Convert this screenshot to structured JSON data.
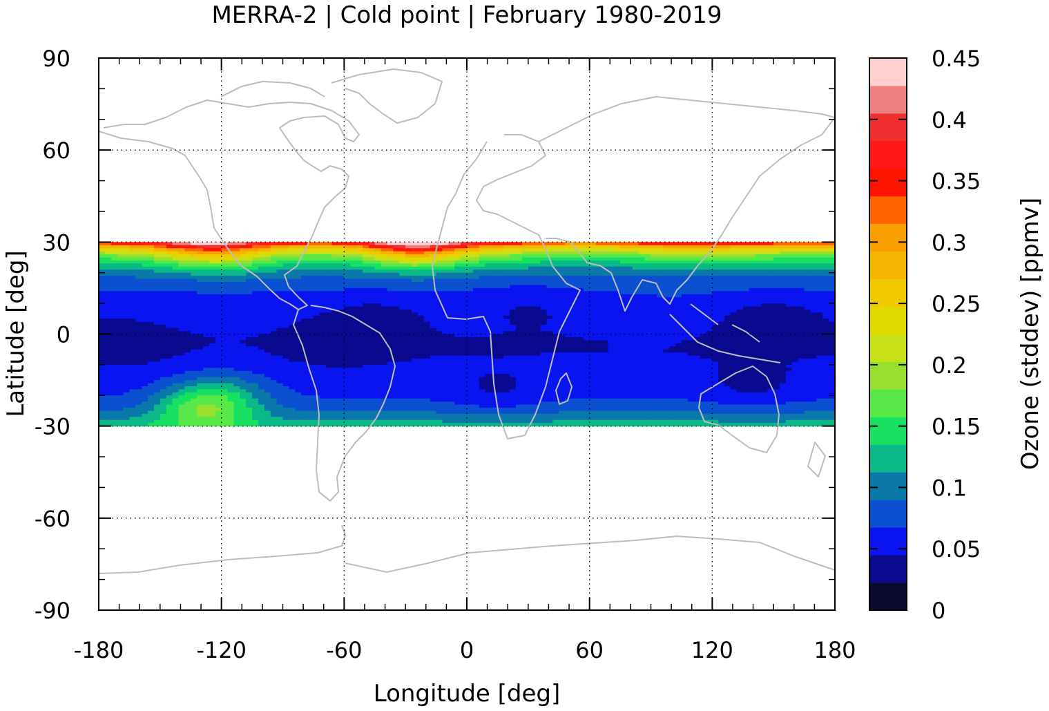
{
  "chart_data": {
    "type": "heatmap",
    "title": "MERRA-2 | Cold point | February 1980-2019",
    "xlabel": "Longitude [deg]",
    "ylabel": "Latitude [deg]",
    "xlim": [
      -180,
      180
    ],
    "ylim": [
      -90,
      90
    ],
    "x_ticks": [
      -180,
      -120,
      -60,
      0,
      60,
      120,
      180
    ],
    "x_tick_labels": [
      "-180",
      "-120",
      "-60",
      "0",
      "60",
      "120",
      "180"
    ],
    "y_ticks": [
      90,
      60,
      30,
      0,
      -30,
      -60,
      -90
    ],
    "y_tick_labels": [
      "90",
      "60",
      "30",
      "0",
      "-30",
      "-60",
      "-90"
    ],
    "grid": true,
    "data_lat_range": [
      -30,
      30
    ],
    "colorbar": {
      "label": "Ozone (stddev) [ppmv]",
      "range": [
        0,
        0.45
      ],
      "ticks": [
        0,
        0.05,
        0.1,
        0.15,
        0.2,
        0.25,
        0.3,
        0.35,
        0.4,
        0.45
      ],
      "tick_labels": [
        "0",
        "0.05",
        "0.1",
        "0.15",
        "0.2",
        "0.25",
        "0.3",
        "0.35",
        "0.4",
        "0.45"
      ],
      "level_step": 0.0225,
      "colors": [
        "#0a0a30",
        "#0a0a90",
        "#0a14f0",
        "#0a50d0",
        "#0a78a8",
        "#0ab888",
        "#18e060",
        "#58e848",
        "#98e030",
        "#c8e018",
        "#e0d800",
        "#f0c800",
        "#f4b400",
        "#f8a000",
        "#ff6400",
        "#ff1400",
        "#ff1818",
        "#f03030",
        "#f08080",
        "#ffd0d0"
      ]
    },
    "field_latitudes": [
      30,
      28,
      26,
      24,
      22,
      20,
      18,
      16,
      14,
      12,
      10,
      8,
      6,
      4,
      2,
      0,
      -2,
      -4,
      -6,
      -8,
      -10,
      -12,
      -14,
      -16,
      -18,
      -20,
      -22,
      -24,
      -26,
      -28,
      -30
    ],
    "field_profile": [
      0.37,
      0.26,
      0.19,
      0.15,
      0.12,
      0.1,
      0.085,
      0.075,
      0.068,
      0.062,
      0.058,
      0.055,
      0.052,
      0.05,
      0.048,
      0.046,
      0.045,
      0.045,
      0.045,
      0.046,
      0.048,
      0.05,
      0.053,
      0.056,
      0.06,
      0.065,
      0.072,
      0.082,
      0.095,
      0.11,
      0.125
    ],
    "anomalies": [
      {
        "lon": -25,
        "lat": 29,
        "value": 0.12
      },
      {
        "lon": -130,
        "lat": 29,
        "value": 0.06
      },
      {
        "lon": 60,
        "lat": 29,
        "value": -0.02
      },
      {
        "lon": -115,
        "lat": 27,
        "value": 0.04
      },
      {
        "lon": -128,
        "lat": -24,
        "value": 0.085
      },
      {
        "lon": -120,
        "lat": -18,
        "value": 0.04
      },
      {
        "lon": -60,
        "lat": -2,
        "value": -0.018
      },
      {
        "lon": -45,
        "lat": 6,
        "value": -0.015
      },
      {
        "lon": 15,
        "lat": -20,
        "value": -0.018
      },
      {
        "lon": 30,
        "lat": 10,
        "value": -0.012
      },
      {
        "lon": 150,
        "lat": 5,
        "value": -0.02
      },
      {
        "lon": 140,
        "lat": -18,
        "value": -0.018
      },
      {
        "lon": -170,
        "lat": -2,
        "value": -0.015
      },
      {
        "lon": 100,
        "lat": 10,
        "value": 0.005
      }
    ]
  }
}
